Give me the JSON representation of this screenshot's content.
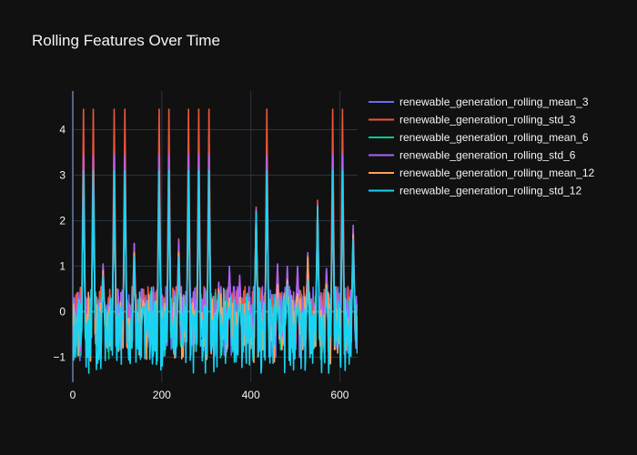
{
  "chart_data": {
    "type": "line",
    "title": "Rolling Features Over Time",
    "xlabel": "",
    "ylabel": "",
    "xlim": [
      0,
      640
    ],
    "ylim": [
      -1.55,
      4.85
    ],
    "x_ticks": [
      0,
      200,
      400,
      600
    ],
    "y_ticks": [
      -1,
      0,
      1,
      2,
      3,
      4
    ],
    "x_tick_labels": [
      "0",
      "200",
      "400",
      "600"
    ],
    "y_tick_labels": [
      "−1",
      "0",
      "1",
      "2",
      "3",
      "4"
    ],
    "grid": true,
    "legend_position": "top-right",
    "x_points": 640,
    "peaks": [
      {
        "x": 24,
        "heights": [
          3.1,
          4.45,
          3.0,
          3.45,
          3.05,
          3.1
        ]
      },
      {
        "x": 46,
        "heights": [
          3.1,
          4.45,
          3.0,
          3.45,
          3.05,
          3.1
        ]
      },
      {
        "x": 68,
        "heights": [
          0.8,
          1.0,
          0.75,
          1.05,
          0.9,
          0.8
        ]
      },
      {
        "x": 93,
        "heights": [
          3.1,
          4.45,
          3.0,
          3.45,
          3.05,
          3.1
        ]
      },
      {
        "x": 117,
        "heights": [
          3.1,
          4.45,
          3.0,
          3.45,
          3.05,
          3.1
        ]
      },
      {
        "x": 138,
        "heights": [
          1.2,
          1.5,
          1.15,
          1.5,
          1.3,
          1.2
        ]
      },
      {
        "x": 158,
        "heights": [
          0.1,
          0.35,
          0.1,
          0.2,
          0.25,
          0.1
        ]
      },
      {
        "x": 194,
        "heights": [
          3.1,
          4.45,
          3.0,
          3.45,
          3.05,
          3.1
        ]
      },
      {
        "x": 216,
        "heights": [
          3.1,
          4.45,
          3.0,
          3.45,
          3.05,
          3.1
        ]
      },
      {
        "x": 238,
        "heights": [
          1.2,
          1.6,
          1.1,
          1.55,
          1.3,
          1.2
        ]
      },
      {
        "x": 260,
        "heights": [
          3.1,
          4.45,
          3.0,
          3.45,
          3.05,
          3.1
        ]
      },
      {
        "x": 283,
        "heights": [
          3.1,
          4.45,
          3.0,
          3.45,
          3.05,
          3.1
        ]
      },
      {
        "x": 306,
        "heights": [
          3.1,
          4.45,
          3.0,
          3.45,
          3.05,
          3.1
        ]
      },
      {
        "x": 328,
        "heights": [
          0.4,
          0.6,
          0.35,
          0.65,
          0.5,
          0.4
        ]
      },
      {
        "x": 352,
        "heights": [
          0.1,
          0.9,
          0.1,
          1.0,
          0.3,
          0.1
        ]
      },
      {
        "x": 375,
        "heights": [
          0.2,
          0.7,
          0.2,
          0.8,
          0.3,
          0.2
        ]
      },
      {
        "x": 412,
        "heights": [
          2.2,
          2.3,
          2.1,
          2.25,
          2.2,
          2.2
        ]
      },
      {
        "x": 436,
        "heights": [
          3.1,
          4.45,
          3.0,
          3.45,
          3.05,
          3.1
        ]
      },
      {
        "x": 460,
        "heights": [
          0.3,
          1.0,
          0.3,
          1.05,
          0.6,
          0.3
        ]
      },
      {
        "x": 482,
        "heights": [
          0.6,
          0.9,
          0.5,
          1.0,
          0.7,
          0.6
        ]
      },
      {
        "x": 505,
        "heights": [
          0.2,
          0.95,
          0.2,
          1.0,
          0.4,
          0.2
        ]
      },
      {
        "x": 528,
        "heights": [
          0.7,
          1.25,
          0.6,
          1.3,
          1.2,
          0.7
        ]
      },
      {
        "x": 550,
        "heights": [
          2.3,
          2.45,
          2.2,
          2.35,
          2.3,
          2.3
        ]
      },
      {
        "x": 570,
        "heights": [
          0.5,
          0.9,
          0.5,
          0.95,
          0.6,
          0.5
        ]
      },
      {
        "x": 584,
        "heights": [
          3.1,
          4.45,
          3.0,
          3.45,
          3.05,
          3.1
        ]
      },
      {
        "x": 606,
        "heights": [
          3.1,
          4.45,
          3.0,
          3.45,
          3.05,
          3.1
        ]
      },
      {
        "x": 630,
        "heights": [
          1.6,
          1.8,
          1.5,
          1.9,
          1.7,
          1.6
        ]
      }
    ],
    "series": [
      {
        "name": "renewable_generation_rolling_mean_3",
        "color": "#636efa",
        "baseline": -0.2,
        "noise": 0.55,
        "seed": 1
      },
      {
        "name": "renewable_generation_rolling_std_3",
        "color": "#ef553b",
        "baseline": 0.0,
        "noise": 0.45,
        "seed": 2
      },
      {
        "name": "renewable_generation_rolling_mean_6",
        "color": "#00cc96",
        "baseline": -0.25,
        "noise": 0.5,
        "seed": 3
      },
      {
        "name": "renewable_generation_rolling_std_6",
        "color": "#ab63fa",
        "baseline": -0.1,
        "noise": 0.55,
        "seed": 4
      },
      {
        "name": "renewable_generation_rolling_mean_12",
        "color": "#ffa15a",
        "baseline": -0.3,
        "noise": 0.5,
        "seed": 5
      },
      {
        "name": "renewable_generation_rolling_std_12",
        "color": "#19d3f3",
        "baseline": -0.4,
        "noise": 0.75,
        "seed": 6
      }
    ]
  }
}
